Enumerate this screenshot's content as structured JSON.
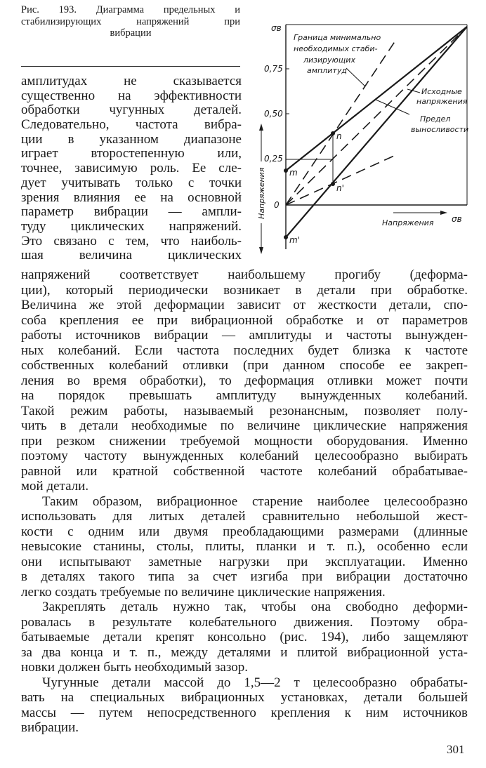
{
  "caption": {
    "lines": [
      "Рис. 193. Диаграмма предельных и",
      "стабилизирующих напряжений при",
      "вибрации"
    ]
  },
  "figure": {
    "y_ticks": [
      "0,25",
      "0,50",
      "0,75"
    ],
    "origin_label": "0",
    "sigma_top": "σв",
    "sigma_right": "σв",
    "y_axis_label": "Напряжения",
    "x_axis_label": "Напряжения",
    "points": {
      "m": "m",
      "n": "n",
      "n_prime": "n'",
      "m_prime": "m'"
    },
    "annotation_boundary": [
      "Граница минимально",
      "необходимых стаби-",
      "лизирующих",
      "амплитуд"
    ],
    "annotation_initial": [
      "Исходные",
      "напряжения"
    ],
    "annotation_limit": [
      "Предел",
      "выносливости"
    ]
  },
  "column_lines": [
    "амплитудах не сказывается",
    "существенно на эффективности",
    "обработки чугунных деталей.",
    "Следовательно, частота вибра-",
    "ции в указанном диапазоне",
    "играет второстепенную или,",
    "точнее, зависимую роль. Ее сле-",
    "дует учитывать только с точки",
    "зрения влияния ее на основной",
    "параметр вибрации — ампли-",
    "туду циклических напряжений.",
    "Это связано с тем, что наиболь-",
    "шая величина циклических"
  ],
  "full_lines": [
    {
      "t": "напряжений соответствует наибольшему прогибу (деформа-"
    },
    {
      "t": "ции), который периодически возникает в детали при обработке."
    },
    {
      "t": "Величина же этой деформации зависит от жесткости детали, спо-"
    },
    {
      "t": "соба крепления ее при вибрационной обработке и от параметров"
    },
    {
      "t": "работы источников вибрации — амплитуды и частоты вынужден-"
    },
    {
      "t": "ных колебаний. Если частота последних будет близка к частоте"
    },
    {
      "t": "собственных колебаний отливки (при данном способе ее закреп-"
    },
    {
      "t": "ления во время обработки), то деформация отливки может почти"
    },
    {
      "t": "на порядок превышать амплитуду вынужденных колебаний."
    },
    {
      "t": "Такой режим работы, называемый резонансным, позволяет полу-"
    },
    {
      "t": "чить в детали необходимые по величине циклические напряжения"
    },
    {
      "t": "при резком снижении требуемой мощности оборудования. Именно"
    },
    {
      "t": "поэтому частоту вынужденных колебаний целесообразно выбирать"
    },
    {
      "t": "равной или кратной собственной частоте колебаний обрабатывае-"
    },
    {
      "t": "мой детали.",
      "end": true
    },
    {
      "t": "Таким образом, вибрационное старение наиболее целесообразно",
      "ind": true
    },
    {
      "t": "использовать для литых деталей сравнительно небольшой жест-"
    },
    {
      "t": "кости с одним или двумя преобладающими размерами (длинные"
    },
    {
      "t": "невысокие станины, столы, плиты, планки и т. п.), особенно если"
    },
    {
      "t": "они испытывают заметные нагрузки при эксплуатации. Именно"
    },
    {
      "t": "в деталях такого типа за счет изгиба при вибрации достаточно"
    },
    {
      "t": "легко создать требуемые по величине циклические напряжения.",
      "end": true
    },
    {
      "t": "Закреплять деталь нужно так, чтобы она свободно деформи-",
      "ind": true
    },
    {
      "t": "ровалась в результате колебательного движения. Поэтому обра-"
    },
    {
      "t": "батываемые детали крепят консольно (рис. 194), либо защемляют"
    },
    {
      "t": "за два конца и т. п., между деталями и плитой вибрационной уста-"
    },
    {
      "t": "новки должен быть необходимый зазор.",
      "end": true
    },
    {
      "t": "Чугунные детали массой до 1,5—2 т целесообразно обрабаты-",
      "ind": true
    },
    {
      "t": "вать на специальных вибрационных установках, детали большей"
    },
    {
      "t": "массы — путем непосредственного крепления к ним источников"
    },
    {
      "t": "вибрации.",
      "end": true
    }
  ],
  "page_number": "301"
}
